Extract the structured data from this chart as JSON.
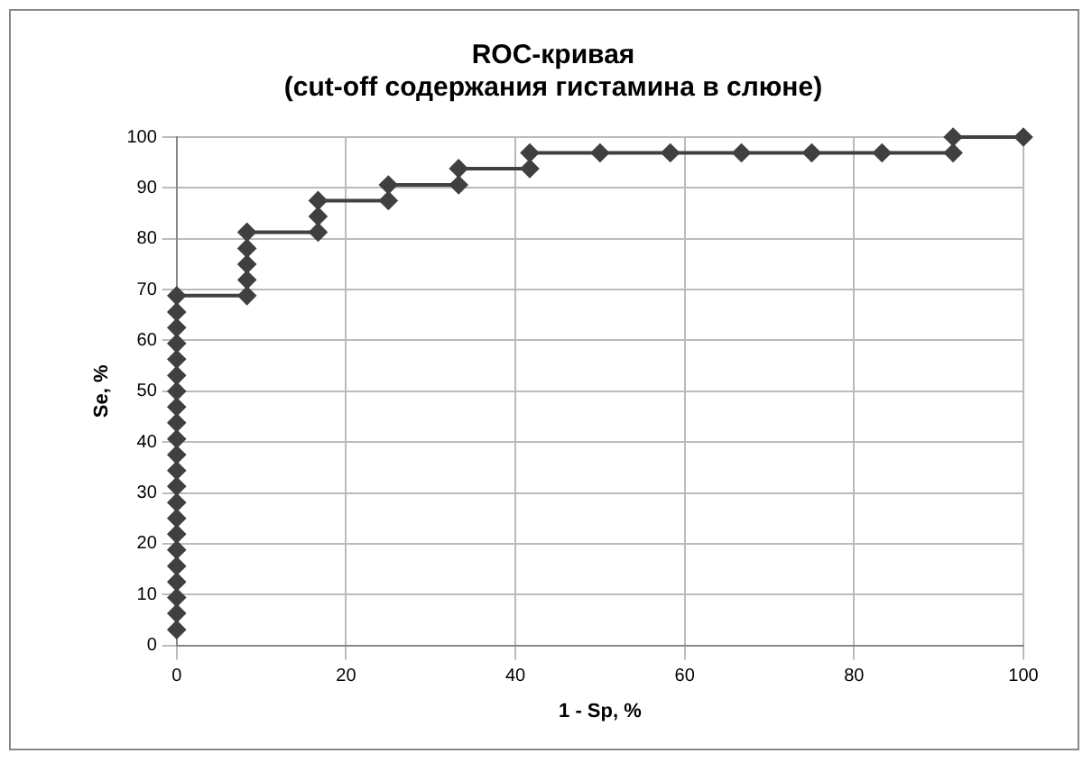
{
  "chart_data": {
    "type": "line",
    "title": "ROC-кривая\n(cut-off содержания гистамина в слюне)",
    "xlabel": "1 - Sp, %",
    "ylabel": "Se, %",
    "x": [
      0,
      0,
      0,
      0,
      0,
      0,
      0,
      0,
      0,
      0,
      0,
      0,
      0,
      0,
      0,
      0,
      0,
      0,
      0,
      0,
      0,
      0,
      8.3,
      8.3,
      8.3,
      8.3,
      8.3,
      16.7,
      16.7,
      16.7,
      25,
      25,
      33.3,
      33.3,
      41.7,
      41.7,
      50,
      58.3,
      66.7,
      75,
      83.3,
      91.7,
      91.7,
      100
    ],
    "series": [
      {
        "color": "#404040",
        "values": [
          3.1,
          6.3,
          9.4,
          12.5,
          15.6,
          18.8,
          21.9,
          25,
          28.1,
          31.3,
          34.4,
          37.5,
          40.6,
          43.8,
          46.9,
          50,
          53.1,
          56.3,
          59.4,
          62.5,
          65.6,
          68.8,
          68.8,
          71.9,
          75,
          78.1,
          81.3,
          81.3,
          84.4,
          87.5,
          87.5,
          90.6,
          90.6,
          93.8,
          93.8,
          96.9,
          96.9,
          96.9,
          96.9,
          96.9,
          96.9,
          96.9,
          100,
          100
        ]
      }
    ],
    "xlim": [
      0,
      100
    ],
    "xticks": [
      0,
      20,
      40,
      60,
      80,
      100
    ],
    "ylim": [
      0,
      100
    ],
    "yticks": [
      0,
      10,
      20,
      30,
      40,
      50,
      60,
      70,
      80,
      90,
      100
    ],
    "grid": true,
    "legend": false,
    "marker": "diamond",
    "line_style": "solid"
  }
}
